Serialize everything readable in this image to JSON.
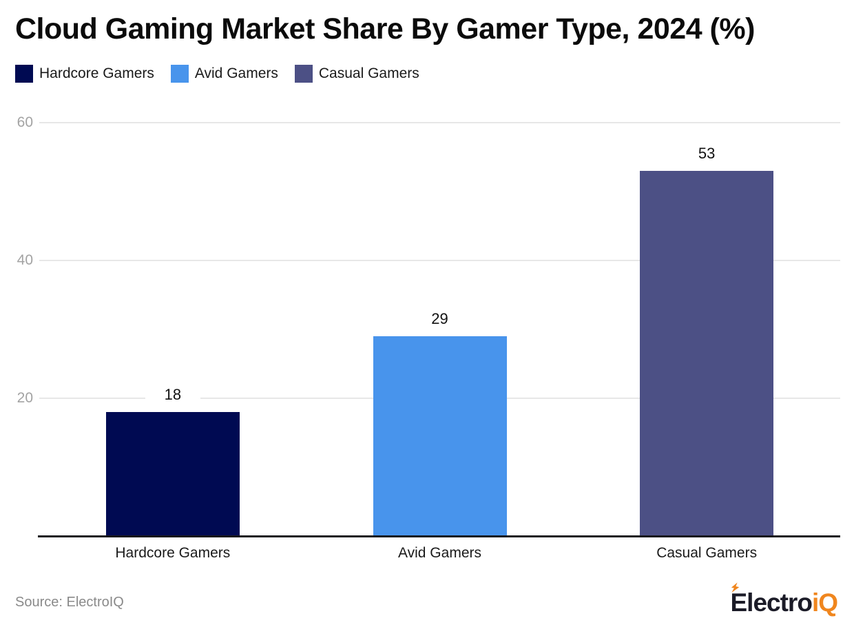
{
  "chart_data": {
    "type": "bar",
    "title": "Cloud Gaming Market Share By Gamer Type, 2024 (%)",
    "categories": [
      "Hardcore Gamers",
      "Avid Gamers",
      "Casual Gamers"
    ],
    "values": [
      18,
      29,
      53
    ],
    "colors": [
      "#000a52",
      "#4894ec",
      "#4c5085"
    ],
    "xlabel": "",
    "ylabel": "",
    "ylim": [
      0,
      60
    ],
    "yticks": [
      20,
      40,
      60
    ],
    "grid": "horizontal",
    "grid_color": "#e7e7e7",
    "tick_label_color": "#a3a3a3",
    "legend_position": "top-left",
    "value_labels_shown": true
  },
  "footer": {
    "source": "Source: ElectroIQ",
    "logo": {
      "text_dark": "Electro",
      "text_accent": "iQ",
      "accent_color": "#f0861e",
      "bolt_icon_color": "#f0861e"
    }
  }
}
